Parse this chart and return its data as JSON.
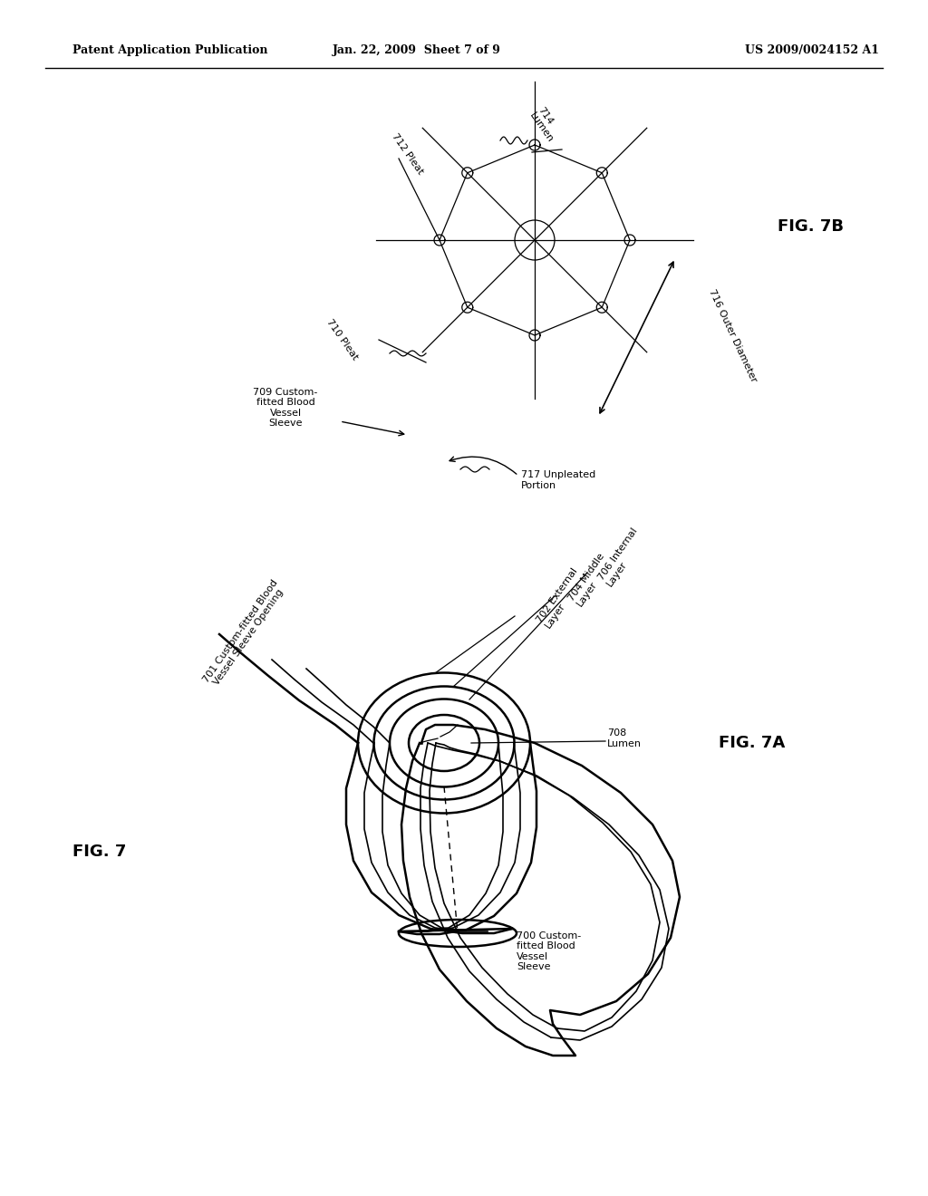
{
  "bg_color": "#ffffff",
  "header_left": "Patent Application Publication",
  "header_center": "Jan. 22, 2009  Sheet 7 of 9",
  "header_right": "US 2009/0024152 A1",
  "fig7_label": "FIG. 7",
  "fig7a_label": "FIG. 7A",
  "fig7b_label": "FIG. 7B"
}
